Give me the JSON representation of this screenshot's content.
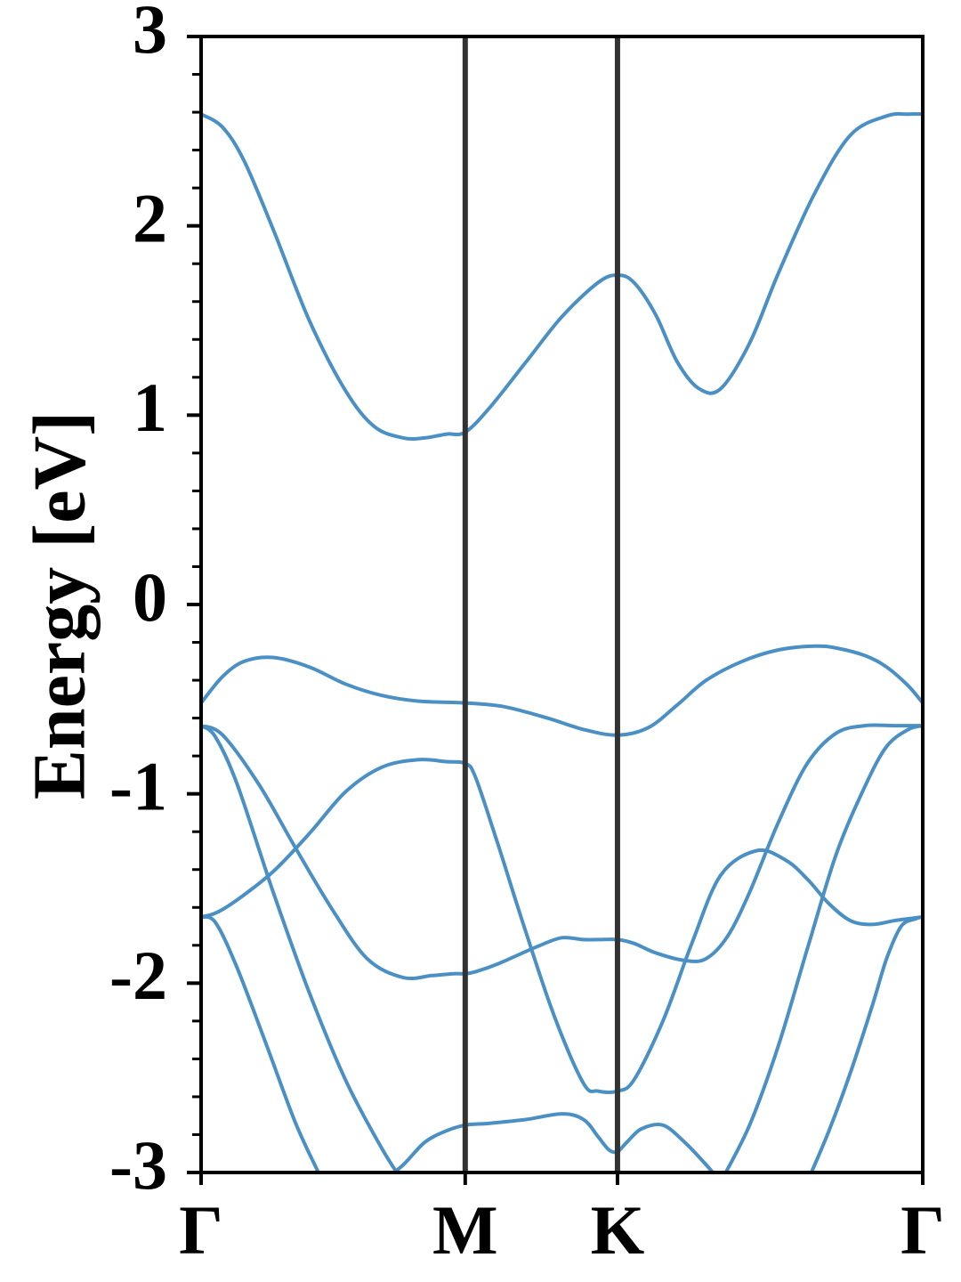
{
  "chart_data": {
    "type": "line",
    "title": "",
    "xlabel": "",
    "ylabel": "Energy [eV]",
    "ylim": [
      -3,
      3
    ],
    "yticks": [
      {
        "value": 3,
        "label": "3"
      },
      {
        "value": 2,
        "label": "2"
      },
      {
        "value": 1,
        "label": "1"
      },
      {
        "value": 0,
        "label": "0"
      },
      {
        "value": -1,
        "label": "-1"
      },
      {
        "value": -2,
        "label": "-2"
      },
      {
        "value": -3,
        "label": "-3"
      }
    ],
    "y_minor_step": 0.2,
    "xlim": [
      0,
      1
    ],
    "kpoints": [
      {
        "label": "Γ",
        "x": 0.0
      },
      {
        "label": "M",
        "x": 0.366
      },
      {
        "label": "K",
        "x": 0.577
      },
      {
        "label": "Γ",
        "x": 1.0
      }
    ],
    "grid": false,
    "line_color": "#4a90c4",
    "divider_color": "#333333",
    "series": [
      {
        "x": [
          0.0,
          0.03,
          0.06,
          0.1,
          0.15,
          0.2,
          0.24,
          0.28,
          0.31,
          0.34,
          0.366,
          0.4,
          0.45,
          0.5,
          0.55,
          0.577,
          0.6,
          0.63,
          0.66,
          0.69,
          0.72,
          0.76,
          0.8,
          0.85,
          0.9,
          0.95,
          0.98,
          1.0
        ],
        "values": [
          2.59,
          2.52,
          2.34,
          1.98,
          1.5,
          1.13,
          0.94,
          0.88,
          0.88,
          0.9,
          0.91,
          1.04,
          1.28,
          1.52,
          1.7,
          1.74,
          1.7,
          1.53,
          1.28,
          1.14,
          1.14,
          1.38,
          1.75,
          2.17,
          2.48,
          2.58,
          2.59,
          2.59
        ]
      },
      {
        "x": [
          0.0,
          0.03,
          0.06,
          0.1,
          0.15,
          0.2,
          0.25,
          0.3,
          0.366,
          0.42,
          0.48,
          0.53,
          0.577,
          0.62,
          0.66,
          0.7,
          0.75,
          0.8,
          0.85,
          0.88,
          0.92,
          0.95,
          0.98,
          1.0
        ],
        "values": [
          -0.52,
          -0.38,
          -0.3,
          -0.28,
          -0.33,
          -0.42,
          -0.48,
          -0.51,
          -0.52,
          -0.54,
          -0.6,
          -0.66,
          -0.69,
          -0.65,
          -0.53,
          -0.4,
          -0.3,
          -0.24,
          -0.22,
          -0.23,
          -0.27,
          -0.33,
          -0.43,
          -0.52
        ]
      },
      {
        "x": [
          0.0,
          0.03,
          0.08,
          0.13,
          0.18,
          0.23,
          0.28,
          0.32,
          0.35,
          0.366,
          0.38,
          0.41,
          0.44,
          0.47,
          0.5,
          0.53,
          0.55,
          0.577,
          0.6,
          0.63,
          0.67,
          0.7,
          0.73,
          0.76,
          0.8,
          0.84,
          0.88,
          0.92,
          0.96,
          1.0
        ],
        "values": [
          -0.64,
          -0.69,
          -0.95,
          -1.28,
          -1.6,
          -1.87,
          -1.97,
          -1.96,
          -1.95,
          -1.95,
          -1.94,
          -1.9,
          -1.85,
          -1.8,
          -1.76,
          -1.77,
          -1.77,
          -1.77,
          -1.79,
          -1.84,
          -1.88,
          -1.87,
          -1.75,
          -1.52,
          -1.15,
          -0.84,
          -0.68,
          -0.64,
          -0.64,
          -0.64
        ]
      },
      {
        "x": [
          0.0,
          0.02,
          0.05,
          0.1,
          0.15,
          0.2,
          0.25,
          0.3,
          0.34,
          0.366,
          0.38,
          0.41,
          0.45,
          0.49,
          0.53,
          0.55,
          0.577,
          0.6,
          0.64,
          0.68,
          0.72,
          0.77,
          0.81,
          0.84,
          0.87,
          0.9,
          0.93,
          0.96,
          0.98,
          1.0
        ],
        "values": [
          -1.65,
          -1.63,
          -1.56,
          -1.41,
          -1.21,
          -0.99,
          -0.86,
          -0.82,
          -0.83,
          -0.84,
          -0.91,
          -1.25,
          -1.73,
          -2.18,
          -2.53,
          -2.57,
          -2.57,
          -2.51,
          -2.2,
          -1.79,
          -1.43,
          -1.3,
          -1.35,
          -1.45,
          -1.58,
          -1.67,
          -1.69,
          -1.67,
          -1.66,
          -1.65
        ]
      },
      {
        "x": [
          0.0,
          0.02,
          0.05,
          0.1,
          0.15,
          0.2,
          0.25,
          0.28
        ],
        "values": [
          -0.64,
          -0.7,
          -0.95,
          -1.52,
          -2.05,
          -2.51,
          -2.87,
          -3.05
        ]
      },
      {
        "x": [
          0.0,
          0.02,
          0.05,
          0.09,
          0.13,
          0.16,
          0.17
        ],
        "values": [
          -1.65,
          -1.68,
          -1.92,
          -2.32,
          -2.73,
          -2.98,
          -3.05
        ]
      },
      {
        "x": [
          0.25,
          0.28,
          0.31,
          0.34,
          0.366,
          0.4,
          0.45,
          0.5,
          0.53,
          0.55,
          0.565,
          0.577,
          0.59,
          0.61,
          0.64,
          0.67,
          0.7,
          0.72
        ],
        "values": [
          -3.05,
          -2.96,
          -2.84,
          -2.78,
          -2.75,
          -2.74,
          -2.72,
          -2.69,
          -2.72,
          -2.81,
          -2.88,
          -2.89,
          -2.84,
          -2.77,
          -2.75,
          -2.84,
          -2.96,
          -3.05
        ]
      },
      {
        "x": [
          0.72,
          0.76,
          0.8,
          0.84,
          0.88,
          0.92,
          0.95,
          0.98,
          1.0
        ],
        "values": [
          -3.05,
          -2.75,
          -2.33,
          -1.82,
          -1.32,
          -0.96,
          -0.75,
          -0.66,
          -0.64
        ]
      },
      {
        "x": [
          0.84,
          0.87,
          0.9,
          0.93,
          0.95,
          0.97,
          0.99,
          1.0
        ],
        "values": [
          -3.05,
          -2.78,
          -2.47,
          -2.12,
          -1.87,
          -1.7,
          -1.66,
          -1.65
        ]
      }
    ]
  }
}
